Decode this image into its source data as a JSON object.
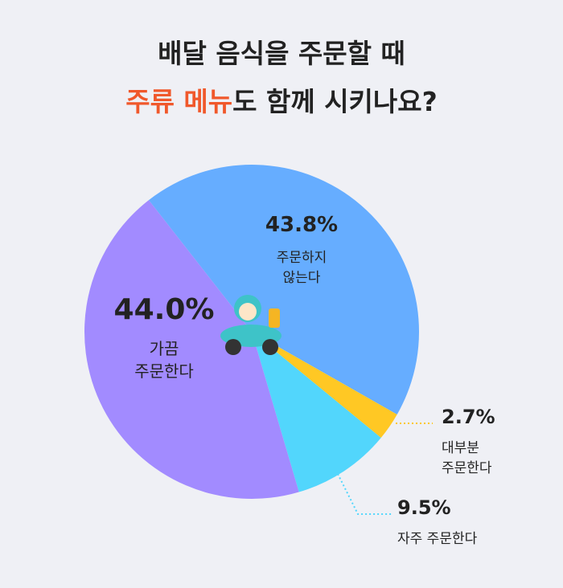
{
  "chart_data": {
    "type": "pie",
    "title": [
      [
        "배달 음식을 주문할 때"
      ],
      [
        "주류 메뉴",
        "도 함께 시키나요?"
      ]
    ],
    "title_highlight_color": "#f0582b",
    "categories": [
      [
        "주문하지",
        "않는다"
      ],
      [
        "대부분",
        "주문한다"
      ],
      [
        "자주 주문한다"
      ],
      [
        "가끔",
        "주문한다"
      ]
    ],
    "values": [
      43.8,
      2.7,
      9.5,
      44.0
    ],
    "value_labels": [
      "43.8%",
      "2.7%",
      "9.5%",
      "44.0%"
    ],
    "colors": [
      "#66adff",
      "#ffc824",
      "#52d6fc",
      "#a28bff"
    ]
  }
}
